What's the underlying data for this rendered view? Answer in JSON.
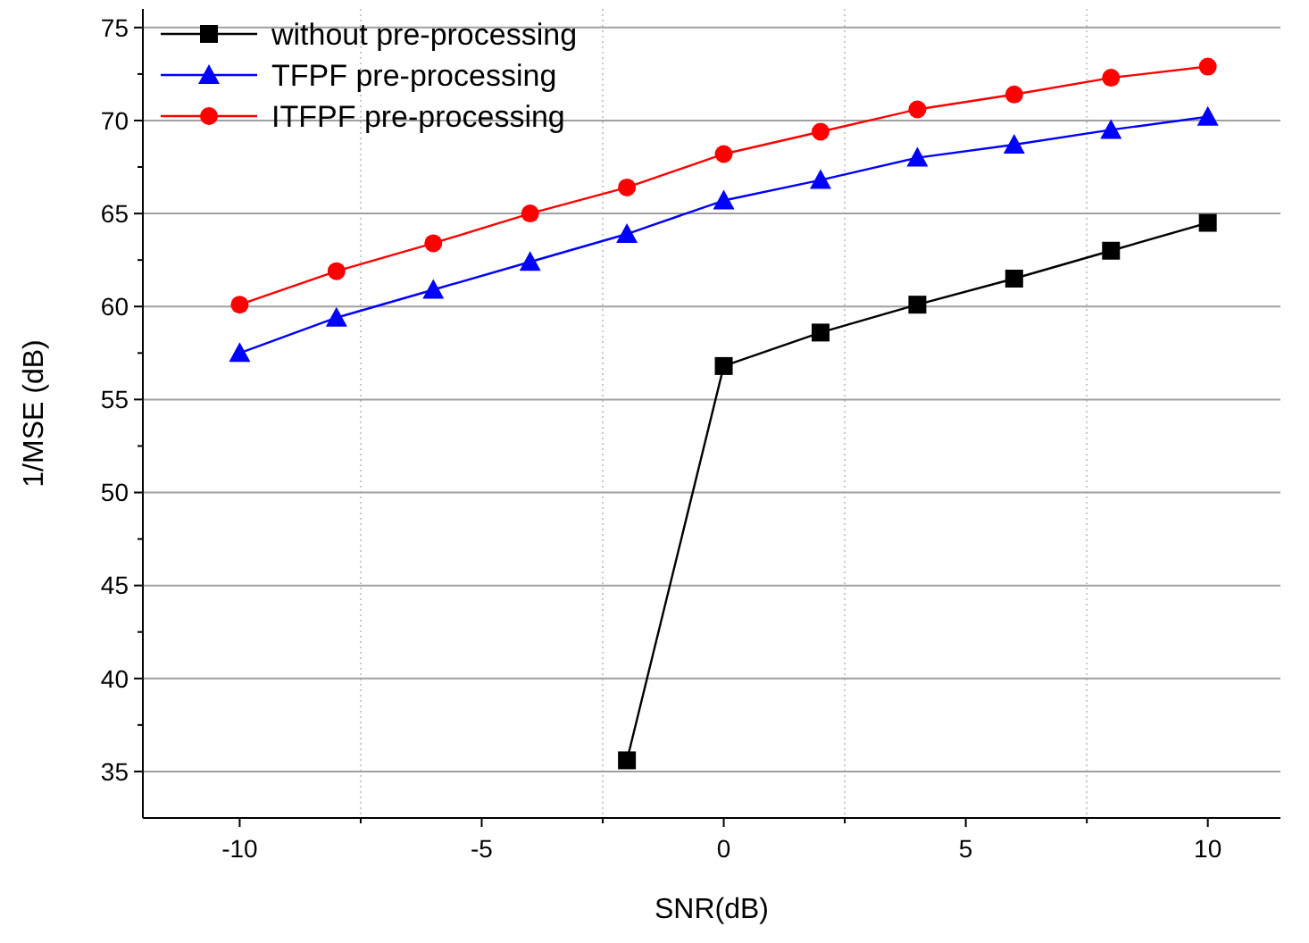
{
  "chart_data": {
    "type": "line",
    "xlabel": "SNR(dB)",
    "ylabel": "1/MSE (dB)",
    "x": [
      -10,
      -8,
      -6,
      -4,
      -2,
      0,
      2,
      4,
      6,
      8,
      10
    ],
    "series": [
      {
        "name": "without pre-processing",
        "color": "#000000",
        "marker": "square",
        "x": [
          -2,
          0,
          2,
          4,
          6,
          8,
          10
        ],
        "values": [
          35.6,
          56.8,
          58.6,
          60.1,
          61.5,
          63.0,
          64.5
        ]
      },
      {
        "name": "TFPF pre-processing",
        "color": "#0000ff",
        "marker": "triangle",
        "values": [
          57.5,
          59.4,
          60.9,
          62.4,
          63.9,
          65.7,
          66.8,
          68.0,
          68.7,
          69.5,
          70.2
        ]
      },
      {
        "name": "ITFPF pre-processing",
        "color": "#ff0000",
        "marker": "circle",
        "values": [
          60.1,
          61.9,
          63.4,
          65.0,
          66.4,
          68.2,
          69.4,
          70.6,
          71.4,
          72.3,
          72.9
        ]
      }
    ],
    "xlim": [
      -12,
      11.5
    ],
    "xticks": [
      -10,
      {
        "value": -7.5,
        "label": null
      },
      -5,
      {
        "value": -2.5,
        "label": null
      },
      0,
      {
        "value": 2.5,
        "label": null
      },
      5,
      {
        "value": 7.5,
        "label": null
      },
      10
    ],
    "ylim": [
      32.5,
      76
    ],
    "yticks": [
      35,
      {
        "value": 37.5,
        "label": null
      },
      40,
      {
        "value": 42.5,
        "label": null
      },
      45,
      {
        "value": 47.5,
        "label": null
      },
      50,
      {
        "value": 52.5,
        "label": null
      },
      55,
      {
        "value": 57.5,
        "label": null
      },
      60,
      {
        "value": 62.5,
        "label": null
      },
      65,
      {
        "value": 67.5,
        "label": null
      },
      70,
      {
        "value": 72.5,
        "label": null
      },
      75
    ],
    "grid": true,
    "legend": "top left",
    "line_style": "solid"
  }
}
